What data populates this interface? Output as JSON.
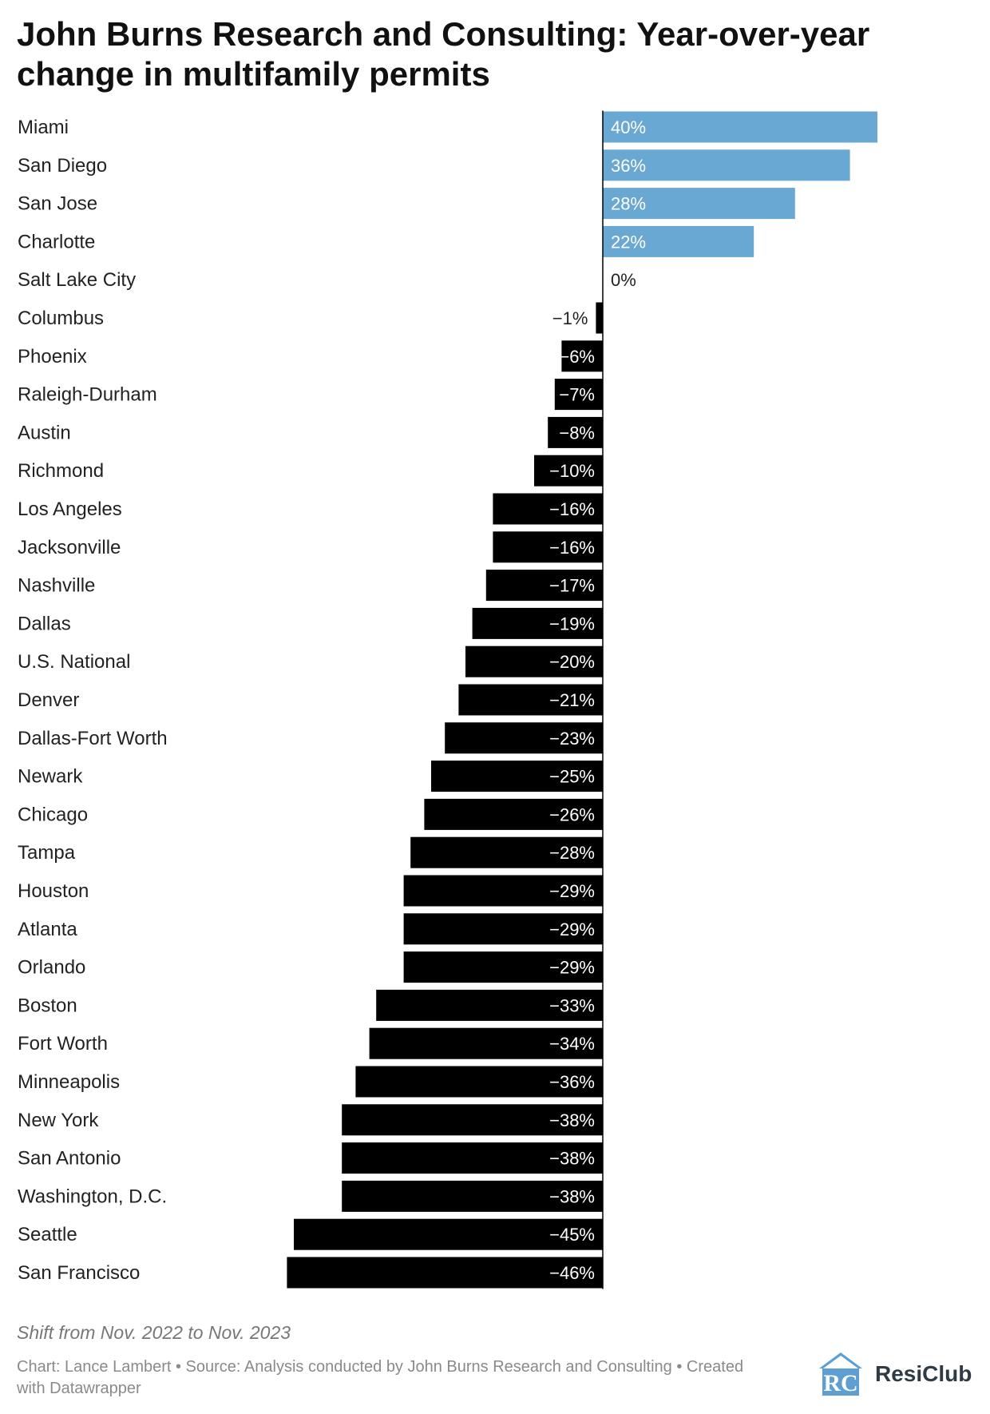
{
  "title": "John Burns Research and Consulting: Year-over-year change in multifamily permits",
  "note": "Shift from Nov. 2022 to Nov. 2023",
  "credits": "Chart: Lance Lambert • Source: Analysis conducted by John Burns Research and Consulting • Created with Datawrapper",
  "logo": {
    "text": "ResiClub",
    "mark_letters": "RC"
  },
  "colors": {
    "positive": "#68a8d2",
    "negative": "#000000",
    "positive_label": "#ffffff",
    "negative_label": "#ffffff",
    "logo_blue": "#5d9fd3"
  },
  "chart_data": {
    "type": "bar",
    "orientation": "horizontal",
    "title": "John Burns Research and Consulting: Year-over-year change in multifamily permits",
    "xlabel": "",
    "ylabel": "",
    "unit": "%",
    "xlim": [
      -46,
      40
    ],
    "categories": [
      "Miami",
      "San Diego",
      "San Jose",
      "Charlotte",
      "Salt Lake City",
      "Columbus",
      "Phoenix",
      "Raleigh-Durham",
      "Austin",
      "Richmond",
      "Los Angeles",
      "Jacksonville",
      "Nashville",
      "Dallas",
      "U.S. National",
      "Denver",
      "Dallas-Fort Worth",
      "Newark",
      "Chicago",
      "Tampa",
      "Houston",
      "Atlanta",
      "Orlando",
      "Boston",
      "Fort Worth",
      "Minneapolis",
      "New York",
      "San Antonio",
      "Washington, D.C.",
      "Seattle",
      "San Francisco"
    ],
    "values": [
      40,
      36,
      28,
      22,
      0,
      -1,
      -6,
      -7,
      -8,
      -10,
      -16,
      -16,
      -17,
      -19,
      -20,
      -21,
      -23,
      -25,
      -26,
      -28,
      -29,
      -29,
      -29,
      -33,
      -34,
      -36,
      -38,
      -38,
      -38,
      -45,
      -46
    ],
    "value_labels": [
      "40%",
      "36%",
      "28%",
      "22%",
      "0%",
      "−1%",
      "−6%",
      "−7%",
      "−8%",
      "−10%",
      "−16%",
      "−16%",
      "−17%",
      "−19%",
      "−20%",
      "−21%",
      "−23%",
      "−25%",
      "−26%",
      "−28%",
      "−29%",
      "−29%",
      "−29%",
      "−33%",
      "−34%",
      "−36%",
      "−38%",
      "−38%",
      "−38%",
      "−45%",
      "−46%"
    ]
  }
}
